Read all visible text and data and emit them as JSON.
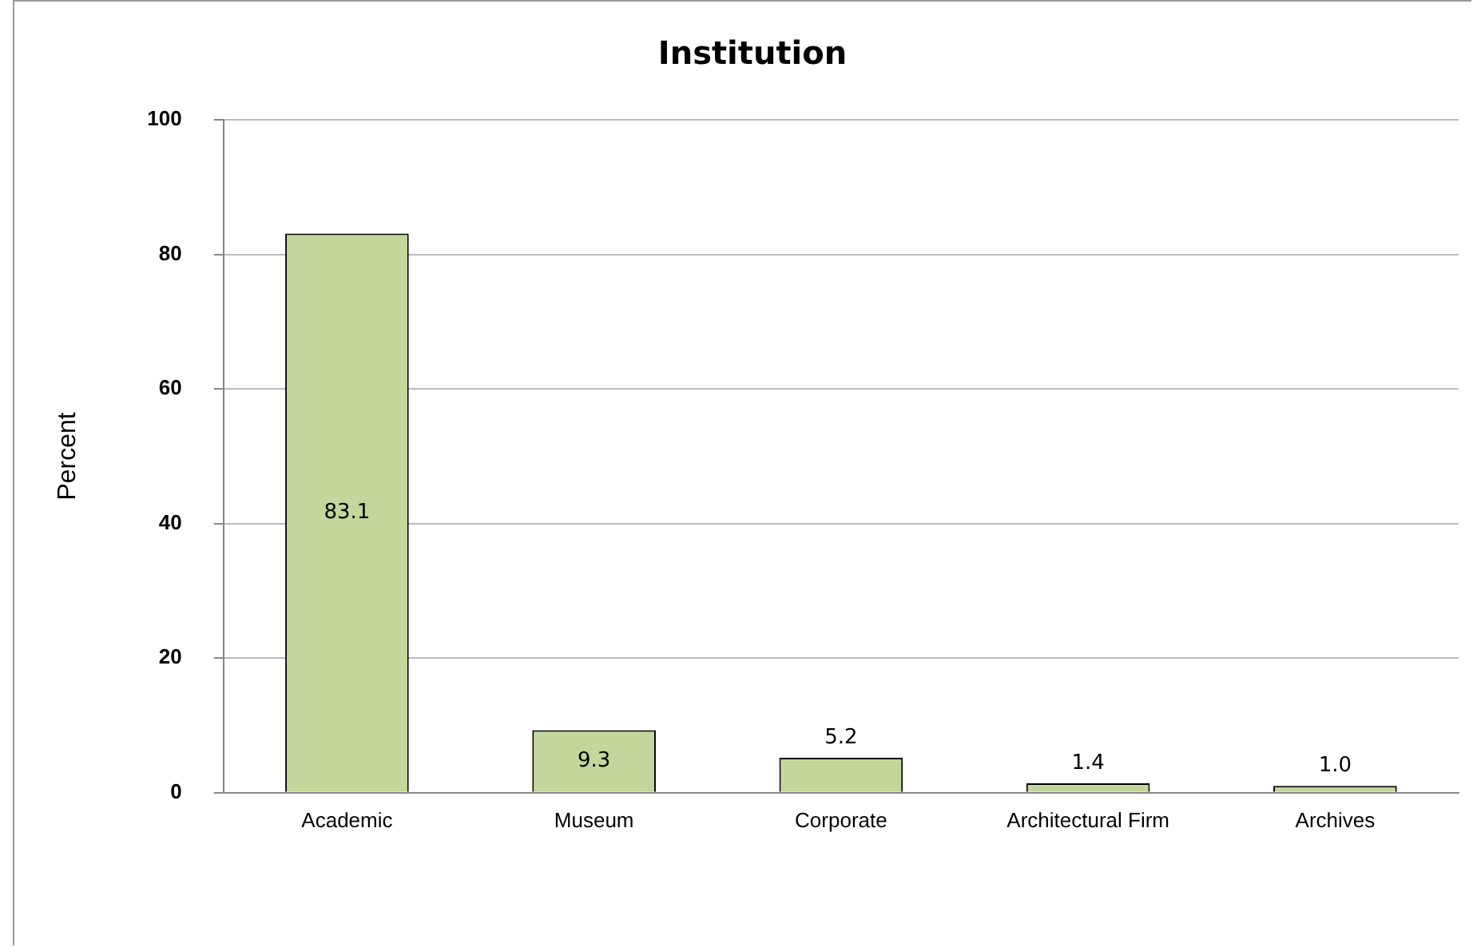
{
  "chart_data": {
    "type": "bar",
    "title": "Institution",
    "ylabel": "Percent",
    "categories": [
      "Academic",
      "Museum",
      "Corporate",
      "Architectural Firm",
      "Archives"
    ],
    "values": [
      83.1,
      9.3,
      5.2,
      1.4,
      1.0
    ],
    "value_labels": [
      "83.1",
      "9.3",
      "5.2",
      "1.4",
      "1.0"
    ],
    "color": "#c3d69b",
    "ylim": [
      0,
      100
    ],
    "yticks": [
      0,
      20,
      40,
      60,
      80,
      100
    ],
    "grid": "y",
    "legend": false
  }
}
